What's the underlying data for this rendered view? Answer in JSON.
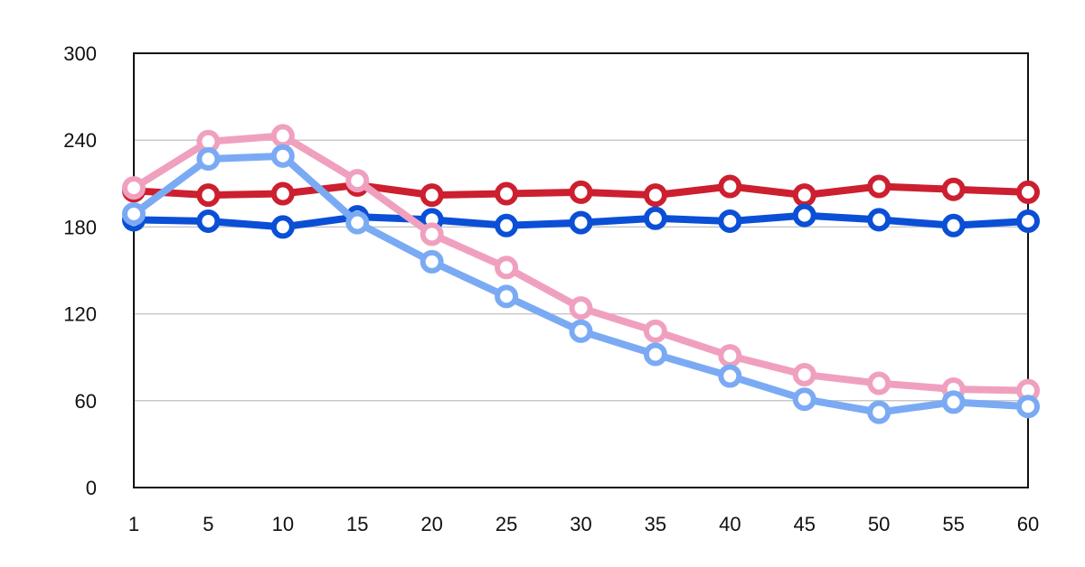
{
  "chart_data": {
    "type": "line",
    "title": "",
    "xlabel": "",
    "ylabel": "",
    "categories": [
      "1",
      "5",
      "10",
      "15",
      "20",
      "25",
      "30",
      "35",
      "40",
      "45",
      "50",
      "55",
      "60"
    ],
    "ylim": [
      0,
      300
    ],
    "yticks": [
      "0",
      "60",
      "120",
      "180",
      "240",
      "300"
    ],
    "grid": true,
    "legend": "none",
    "series": [
      {
        "color": "#cc1f2f",
        "values": [
          205,
          202,
          203,
          209,
          202,
          203,
          204,
          202,
          208,
          202,
          208,
          206,
          204
        ]
      },
      {
        "color": "#0a4fd6",
        "values": [
          185,
          184,
          180,
          187,
          185,
          181,
          183,
          186,
          184,
          188,
          185,
          181,
          184
        ]
      },
      {
        "color": "#f0a0bf",
        "values": [
          207,
          239,
          243,
          212,
          175,
          152,
          124,
          108,
          91,
          78,
          72,
          68,
          67
        ]
      },
      {
        "color": "#7aaaf4",
        "values": [
          189,
          227,
          229,
          183,
          156,
          132,
          108,
          92,
          77,
          61,
          52,
          59,
          56
        ]
      }
    ]
  }
}
